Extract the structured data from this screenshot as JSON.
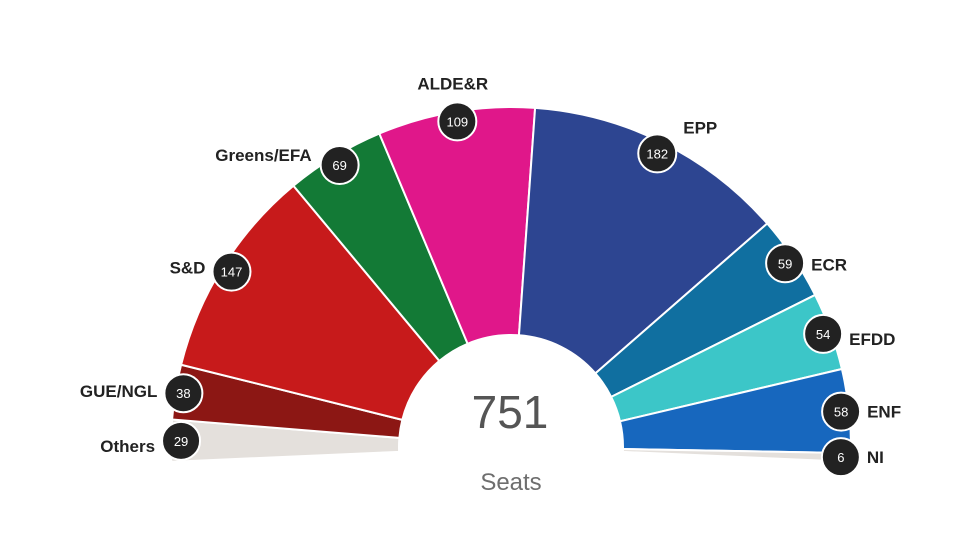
{
  "chart_data": {
    "type": "pie",
    "total": "751",
    "total_caption": "Seats",
    "start_side": "left",
    "series": [
      {
        "label": "Others",
        "value": 29,
        "color": "#e4e0dc"
      },
      {
        "label": "GUE/NGL",
        "value": 38,
        "color": "#8c1714"
      },
      {
        "label": "S&D",
        "value": 147,
        "color": "#c71a1b"
      },
      {
        "label": "Greens/EFA",
        "value": 69,
        "color": "#137a36"
      },
      {
        "label": "ALDE&R",
        "value": 109,
        "color": "#e0178a"
      },
      {
        "label": "EPP",
        "value": 182,
        "color": "#2d4591"
      },
      {
        "label": "ECR",
        "value": 59,
        "color": "#106fa0"
      },
      {
        "label": "EFDD",
        "value": 54,
        "color": "#3cc6c8"
      },
      {
        "label": "ENF",
        "value": 58,
        "color": "#1767be"
      },
      {
        "label": "NI",
        "value": 6,
        "color": "#e4e0dc"
      }
    ]
  }
}
